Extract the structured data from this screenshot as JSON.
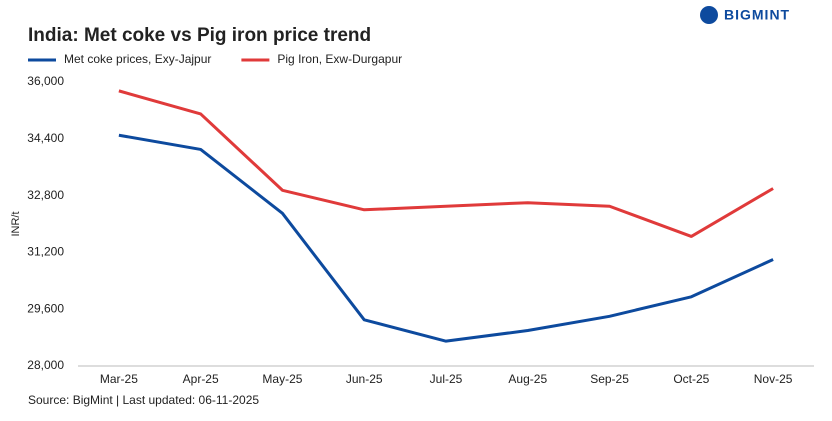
{
  "brand": "BIGMINT",
  "chart_data": {
    "type": "line",
    "title": "India: Met coke vs Pig iron price trend",
    "y_label": "INR/t",
    "source": "Source: BigMint | Last updated: 06-11-2025",
    "categories": [
      "Mar-25",
      "Apr-25",
      "May-25",
      "Jun-25",
      "Jul-25",
      "Aug-25",
      "Sep-25",
      "Oct-25",
      "Nov-25"
    ],
    "series": [
      {
        "name": "Met coke prices, Exy-Jajpur",
        "color": "#0d4a9e",
        "values": [
          34500,
          34100,
          32300,
          29300,
          28700,
          29000,
          29400,
          29950,
          31000
        ]
      },
      {
        "name": "Pig Iron, Exw-Durgapur",
        "color": "#e03a3a",
        "values": [
          35750,
          35100,
          32950,
          32400,
          32500,
          32600,
          32500,
          31650,
          33000
        ]
      }
    ],
    "ylim": [
      28000,
      36000
    ],
    "yticks": [
      {
        "value": 28000,
        "label": "28,000"
      },
      {
        "value": 29600,
        "label": "29,600"
      },
      {
        "value": 31200,
        "label": "31,200"
      },
      {
        "value": 32800,
        "label": "32,800"
      },
      {
        "value": 34400,
        "label": "34,400"
      },
      {
        "value": 36000,
        "label": "36,000"
      }
    ],
    "grid": false
  }
}
